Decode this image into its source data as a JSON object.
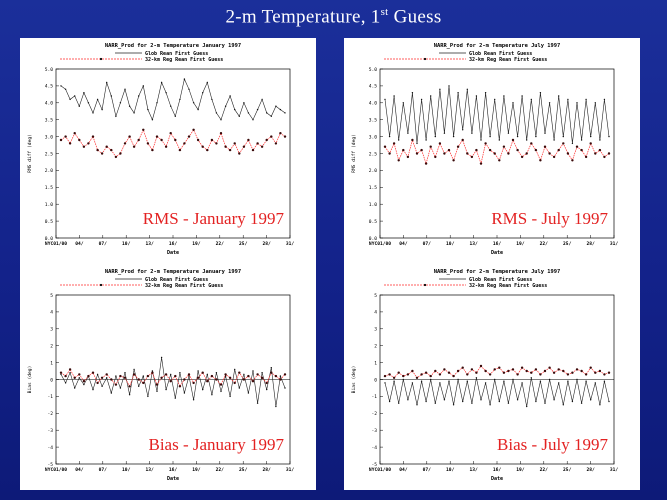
{
  "slide": {
    "title_main": "2-m  Temperature, 1",
    "title_sup": "st",
    "title_tail": " Guess"
  },
  "legend": {
    "series1": "Glob Rean First Guess",
    "series2": "32-km Reg Rean First Guess"
  },
  "colors": {
    "background": "#13228a",
    "glob": "#222222",
    "reg": "#ff2a2a",
    "overlay": "#e32222"
  },
  "chart_data": [
    {
      "id": "rms-jan",
      "type": "line",
      "title": "NARR_Prod for 2-m Temperature January 1997",
      "overlay_label": "RMS - January 1997",
      "xlabel": "Date",
      "ylabel": "RMS diff (deg)",
      "x_ticks": [
        "NYC01/00",
        "04/",
        "07/",
        "10/",
        "13/",
        "16/",
        "19/",
        "22/",
        "25/",
        "28/",
        "31/"
      ],
      "y_ticks": [
        "0.0",
        "0.5",
        "1.0",
        "1.5",
        "2.0",
        "2.5",
        "3.0",
        "3.5",
        "4.0",
        "4.5",
        "5.0"
      ],
      "ylim": [
        0,
        5
      ],
      "series": [
        {
          "name": "Glob Rean First Guess",
          "values": [
            4.5,
            4.4,
            4.1,
            4.2,
            3.9,
            4.3,
            4.0,
            3.7,
            4.1,
            3.8,
            4.6,
            4.2,
            3.6,
            4.0,
            4.4,
            3.9,
            3.7,
            4.2,
            4.5,
            3.8,
            3.5,
            4.0,
            4.6,
            4.3,
            3.9,
            3.6,
            4.1,
            4.7,
            4.4,
            4.0,
            3.8,
            4.3,
            4.6,
            4.1,
            3.7,
            3.5,
            3.9,
            4.2,
            3.8,
            3.6,
            4.0,
            3.7,
            3.5,
            3.8,
            4.1,
            3.7,
            3.6,
            3.9,
            3.8,
            3.7
          ]
        },
        {
          "name": "32-km Reg Rean First Guess",
          "values": [
            2.9,
            3.0,
            2.8,
            3.1,
            2.9,
            2.7,
            2.8,
            3.0,
            2.6,
            2.5,
            2.7,
            2.6,
            2.4,
            2.5,
            2.8,
            3.0,
            2.7,
            2.9,
            3.2,
            2.8,
            2.6,
            3.0,
            2.9,
            2.7,
            3.1,
            2.9,
            2.6,
            2.8,
            3.0,
            3.2,
            2.9,
            2.7,
            2.6,
            2.9,
            2.8,
            3.1,
            2.7,
            2.6,
            2.8,
            2.5,
            2.7,
            2.9,
            2.6,
            2.8,
            2.7,
            2.9,
            3.0,
            2.8,
            3.1,
            3.0
          ]
        }
      ]
    },
    {
      "id": "rms-jul",
      "type": "line",
      "title": "NARR_Prod for 2-m Temperature July 1997",
      "overlay_label": "RMS - July 1997",
      "xlabel": "Date",
      "ylabel": "RMS diff (deg)",
      "x_ticks": [
        "NYC01/00",
        "04/",
        "07/",
        "10/",
        "13/",
        "16/",
        "19/",
        "22/",
        "25/",
        "28/",
        "31/"
      ],
      "y_ticks": [
        "0.0",
        "0.5",
        "1.0",
        "1.5",
        "2.0",
        "2.5",
        "3.0",
        "3.5",
        "4.0",
        "4.5",
        "5.0"
      ],
      "ylim": [
        0,
        5
      ],
      "series": [
        {
          "name": "Glob Rean First Guess",
          "values": [
            4.1,
            3.0,
            4.2,
            2.9,
            4.0,
            3.1,
            4.3,
            2.8,
            4.1,
            2.9,
            4.2,
            3.0,
            4.4,
            3.1,
            4.5,
            3.0,
            4.3,
            3.2,
            4.4,
            3.1,
            4.2,
            2.9,
            4.3,
            3.0,
            4.1,
            2.9,
            4.2,
            3.1,
            4.0,
            3.0,
            4.2,
            2.9,
            4.1,
            3.0,
            4.3,
            3.1,
            4.0,
            2.9,
            4.2,
            3.0,
            4.1,
            2.8,
            4.0,
            2.9,
            4.1,
            3.0,
            4.0,
            2.9,
            4.1,
            3.0
          ]
        },
        {
          "name": "32-km Reg Rean First Guess",
          "values": [
            2.7,
            2.5,
            2.8,
            2.3,
            2.6,
            2.4,
            2.9,
            2.5,
            2.6,
            2.2,
            2.7,
            2.4,
            2.8,
            2.5,
            2.6,
            2.3,
            2.7,
            2.9,
            2.5,
            2.4,
            2.6,
            2.2,
            2.8,
            2.6,
            2.5,
            2.3,
            2.7,
            2.5,
            2.9,
            2.6,
            2.4,
            2.5,
            2.8,
            2.6,
            2.3,
            2.7,
            2.5,
            2.4,
            2.6,
            2.8,
            2.5,
            2.3,
            2.7,
            2.6,
            2.4,
            2.8,
            2.5,
            2.6,
            2.4,
            2.5
          ]
        }
      ]
    },
    {
      "id": "bias-jan",
      "type": "line",
      "title": "NARR_Prod for 2-m Temperature January 1997",
      "overlay_label": "Bias - January 1997",
      "xlabel": "Date",
      "ylabel": "Bias (deg)",
      "x_ticks": [
        "NYC01/00",
        "04/",
        "07/",
        "10/",
        "13/",
        "16/",
        "19/",
        "22/",
        "25/",
        "28/",
        "31/"
      ],
      "y_ticks": [
        "-5",
        "-4",
        "-3",
        "-2",
        "-1",
        "0",
        "1",
        "2",
        "3",
        "4",
        "5"
      ],
      "ylim": [
        -5,
        5
      ],
      "series": [
        {
          "name": "Glob Rean First Guess",
          "values": [
            0.3,
            -0.2,
            0.4,
            -0.5,
            0.1,
            -0.3,
            0.2,
            -0.6,
            0.3,
            -0.4,
            0.1,
            -0.8,
            0.2,
            -0.5,
            0.4,
            -0.9,
            0.6,
            -0.4,
            0.2,
            -1.0,
            0.5,
            -0.7,
            1.3,
            -0.6,
            0.3,
            -1.1,
            0.4,
            -0.8,
            0.2,
            -1.2,
            0.5,
            -0.6,
            0.3,
            -0.9,
            0.4,
            -0.7,
            0.2,
            -1.0,
            0.6,
            -0.5,
            0.3,
            -0.8,
            0.5,
            -1.4,
            0.4,
            -0.6,
            0.7,
            -1.6,
            0.2,
            -0.5
          ]
        },
        {
          "name": "32-km Reg Rean First Guess",
          "values": [
            0.4,
            0.2,
            0.6,
            0.1,
            0.3,
            -0.1,
            0.2,
            0.4,
            -0.2,
            0.1,
            0.3,
            0.0,
            -0.3,
            0.2,
            0.1,
            -0.4,
            0.3,
            0.0,
            -0.2,
            0.2,
            0.4,
            -0.3,
            0.1,
            0.3,
            -0.1,
            0.2,
            -0.4,
            0.0,
            0.3,
            -0.2,
            0.1,
            0.4,
            -0.1,
            0.2,
            0.0,
            -0.3,
            0.3,
            0.1,
            -0.2,
            0.4,
            0.0,
            0.2,
            -0.1,
            0.3,
            0.1,
            -0.2,
            0.4,
            0.2,
            0.0,
            0.3
          ]
        }
      ]
    },
    {
      "id": "bias-jul",
      "type": "line",
      "title": "NARR_Prod for 2-m Temperature July 1997",
      "overlay_label": "Bias - July 1997",
      "xlabel": "Date",
      "ylabel": "Bias (deg)",
      "x_ticks": [
        "NYC01/00",
        "04/",
        "07/",
        "10/",
        "13/",
        "16/",
        "19/",
        "22/",
        "25/",
        "28/",
        "31/"
      ],
      "y_ticks": [
        "-5",
        "-4",
        "-3",
        "-2",
        "-1",
        "0",
        "1",
        "2",
        "3",
        "4",
        "5"
      ],
      "ylim": [
        -5,
        5
      ],
      "series": [
        {
          "name": "Glob Rean First Guess",
          "values": [
            -0.2,
            -1.3,
            -0.1,
            -1.4,
            0.0,
            -1.2,
            -0.2,
            -1.5,
            -0.1,
            -1.3,
            0.0,
            -1.4,
            -0.2,
            -1.2,
            -0.1,
            -1.5,
            0.0,
            -1.3,
            -0.1,
            -1.4,
            0.1,
            -1.2,
            -0.2,
            -1.5,
            0.0,
            -1.3,
            -0.1,
            -1.4,
            0.0,
            -1.2,
            -0.2,
            -1.6,
            0.1,
            -1.3,
            -0.1,
            -1.4,
            0.0,
            -1.2,
            -0.2,
            -1.5,
            -0.1,
            -1.3,
            0.0,
            -1.4,
            -0.1,
            -1.2,
            -0.2,
            -1.5,
            -0.1,
            -1.3
          ]
        },
        {
          "name": "32-km Reg Rean First Guess",
          "values": [
            0.2,
            0.3,
            0.1,
            0.4,
            0.2,
            0.3,
            0.5,
            0.1,
            0.3,
            0.4,
            0.2,
            0.5,
            0.3,
            0.6,
            0.4,
            0.2,
            0.5,
            0.7,
            0.3,
            0.6,
            0.4,
            0.8,
            0.5,
            0.3,
            0.6,
            0.7,
            0.4,
            0.5,
            0.6,
            0.3,
            0.7,
            0.5,
            0.4,
            0.6,
            0.3,
            0.5,
            0.7,
            0.4,
            0.6,
            0.5,
            0.3,
            0.4,
            0.6,
            0.5,
            0.3,
            0.7,
            0.4,
            0.5,
            0.3,
            0.4
          ]
        }
      ]
    }
  ]
}
